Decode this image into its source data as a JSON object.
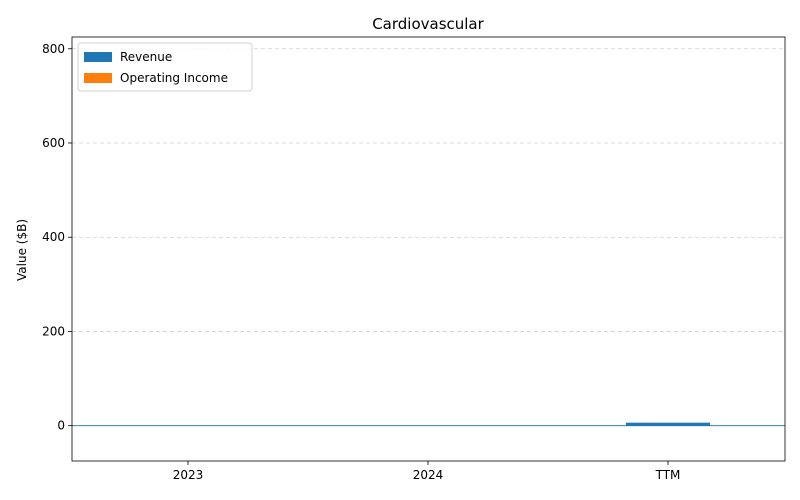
{
  "chart_data": {
    "type": "bar",
    "title": "Cardiovascular",
    "xlabel": "",
    "ylabel": "Value ($B)",
    "categories": [
      "2023",
      "2024",
      "TTM"
    ],
    "series": [
      {
        "name": "Revenue",
        "color": "#1f77b4",
        "values": [
          0,
          0,
          5
        ]
      },
      {
        "name": "Operating Income",
        "color": "#ff7f0e",
        "values": [
          0,
          0,
          0
        ]
      }
    ],
    "ylim": [
      -75,
      825
    ],
    "yticks": [
      0,
      200,
      400,
      600,
      800
    ],
    "grid": true,
    "legend_position": "top-left"
  }
}
